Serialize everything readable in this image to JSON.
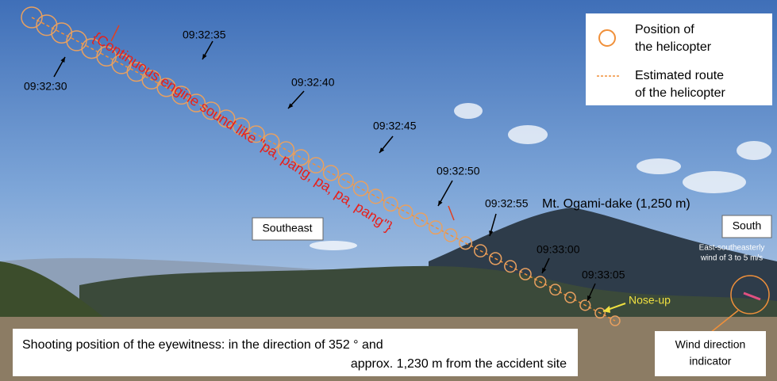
{
  "legend": [
    {
      "lines": [
        "Position of",
        "the helicopter"
      ]
    },
    {
      "lines": [
        "Estimated route",
        "of the helicopter"
      ]
    }
  ],
  "times": [
    "09:32:30",
    "09:32:35",
    "09:32:40",
    "09:32:45",
    "09:32:50",
    "09:32:55",
    "09:33:00",
    "09:33:05"
  ],
  "sound_note": "{Continuous engine sound like \"pa, pang, pa, pa, pang\"}",
  "mountain": "Mt. Ogami-dake (1,250 m)",
  "directions": {
    "southeast": "Southeast",
    "south": "South"
  },
  "wind": {
    "lines": [
      "East-southeasterly",
      "wind of 3 to 5 m/s"
    ],
    "indicator": [
      "Wind direction",
      "indicator"
    ]
  },
  "nose_up": "Nose-up",
  "caption": [
    "Shooting position of the eyewitness: in the direction of 352 °  and",
    "approx. 1,230 m   from the accident site"
  ]
}
